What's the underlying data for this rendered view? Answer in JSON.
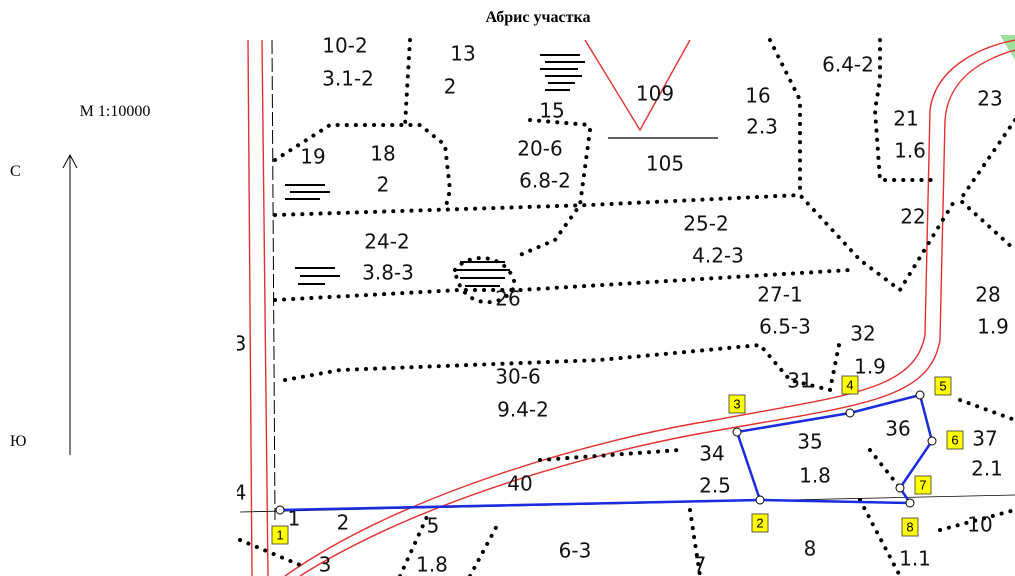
{
  "header": {
    "title": "Абрис участка"
  },
  "legend": {
    "scale": "М 1:10000",
    "north": "С",
    "south": "Ю"
  },
  "map": {
    "labels": [
      "10-2",
      "3.1-2",
      "13",
      "2",
      "109",
      "105",
      "15",
      "16",
      "2.3",
      "6.4-2",
      "23",
      "21",
      "1.6",
      "19",
      "18",
      "2",
      "20-6",
      "6.8-2",
      "22",
      "25-2",
      "4.2-3",
      "24-2",
      "3.8-3",
      "26",
      "27-1",
      "6.5-3",
      "28",
      "1.9",
      "32",
      "1.9",
      "3",
      "30-6",
      "9.4-2",
      "31",
      "35",
      "1.8",
      "36",
      "37",
      "2.1",
      "34",
      "2.5",
      "40",
      "4",
      "1",
      "2",
      "5",
      "1.8",
      "6-3",
      "7",
      "8",
      "10",
      "1.1",
      "3"
    ],
    "points": [
      "1",
      "2",
      "3",
      "4",
      "5",
      "6",
      "7",
      "8"
    ]
  }
}
